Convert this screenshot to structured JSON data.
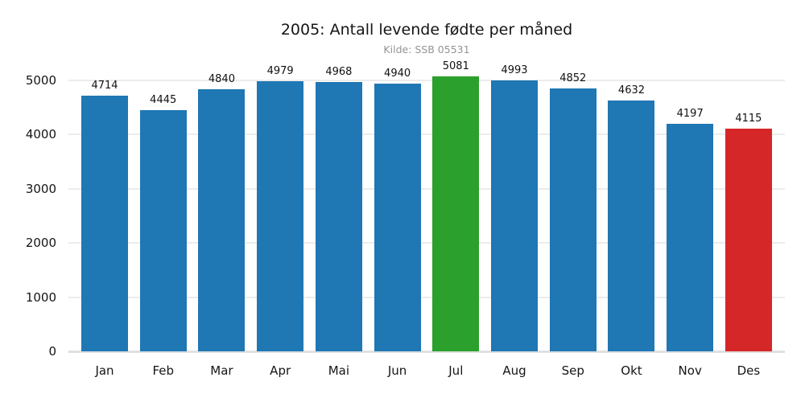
{
  "chart_data": {
    "type": "bar",
    "title": "2005: Antall levende fødte per måned",
    "subtitle": "Kilde: SSB 05531",
    "categories": [
      "Jan",
      "Feb",
      "Mar",
      "Apr",
      "Mai",
      "Jun",
      "Jul",
      "Aug",
      "Sep",
      "Okt",
      "Nov",
      "Des"
    ],
    "values": [
      4714,
      4445,
      4840,
      4979,
      4968,
      4940,
      5081,
      4993,
      4852,
      4632,
      4197,
      4115
    ],
    "bar_colors": [
      "#1f77b4",
      "#1f77b4",
      "#1f77b4",
      "#1f77b4",
      "#1f77b4",
      "#1f77b4",
      "#2ca02c",
      "#1f77b4",
      "#1f77b4",
      "#1f77b4",
      "#1f77b4",
      "#d62728"
    ],
    "yticks": [
      0,
      1000,
      2000,
      3000,
      4000,
      5000
    ],
    "ylim": [
      0,
      5000
    ],
    "xlabel": "",
    "ylabel": "",
    "grid": true,
    "legend": null,
    "colors": {
      "bar_default": "#1f77b4",
      "bar_max_highlight": "#2ca02c",
      "bar_min_highlight": "#d62728",
      "gridline": "#ececec",
      "axis_line": "#e0e0e0",
      "title_text": "#151515",
      "subtitle_text": "#949494",
      "background": "#ffffff"
    }
  }
}
